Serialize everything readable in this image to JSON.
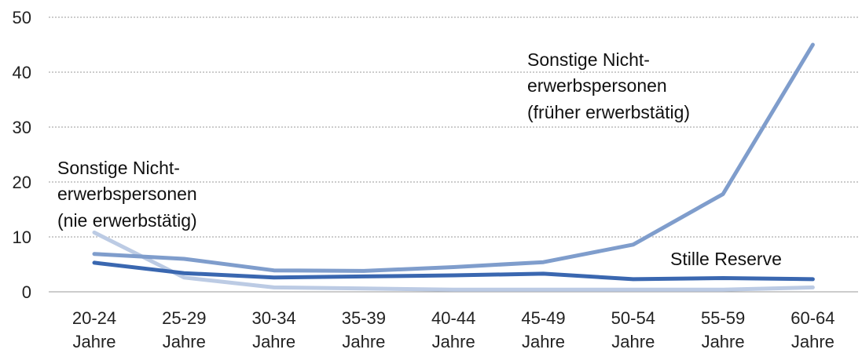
{
  "chart_data": {
    "type": "line",
    "categories": [
      [
        "20-24",
        "Jahre"
      ],
      [
        "25-29",
        "Jahre"
      ],
      [
        "30-34",
        "Jahre"
      ],
      [
        "35-39",
        "Jahre"
      ],
      [
        "40-44",
        "Jahre"
      ],
      [
        "45-49",
        "Jahre"
      ],
      [
        "50-54",
        "Jahre"
      ],
      [
        "55-59",
        "Jahre"
      ],
      [
        "60-64",
        "Jahre"
      ]
    ],
    "ylim": [
      0,
      50
    ],
    "yticks": [
      0,
      10,
      20,
      30,
      40,
      50
    ],
    "grid": true,
    "legend": "none",
    "series": [
      {
        "name": "Sonstige Nichterwerbspersonen (früher erwerbstätig)",
        "color": "#7f9dcc",
        "values": [
          6.9,
          6.0,
          3.9,
          3.8,
          4.5,
          5.4,
          8.6,
          17.8,
          45.0
        ]
      },
      {
        "name": "Stille Reserve",
        "color": "#3a67b0",
        "values": [
          5.3,
          3.4,
          2.6,
          2.8,
          3.0,
          3.3,
          2.3,
          2.5,
          2.3
        ]
      },
      {
        "name": "Sonstige Nichterwerbspersonen (nie erwerbstätig)",
        "color": "#bccbe4",
        "values": [
          10.8,
          2.6,
          0.8,
          0.6,
          0.4,
          0.4,
          0.4,
          0.4,
          0.8
        ]
      }
    ],
    "annotations": [
      {
        "lines": [
          "Sonstige Nicht-",
          "erwerbspersonen",
          "(früher erwerbstätig)"
        ]
      },
      {
        "lines": [
          "Sonstige Nicht-",
          "erwerbspersonen",
          "(nie erwerbstätig)"
        ]
      },
      {
        "lines": [
          "Stille Reserve"
        ]
      }
    ]
  }
}
